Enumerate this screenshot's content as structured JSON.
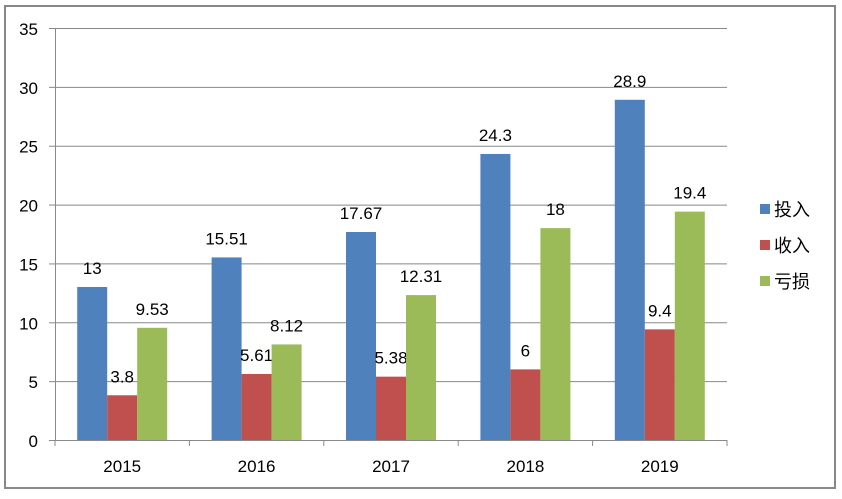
{
  "chart_data": {
    "type": "bar",
    "categories": [
      "2015",
      "2016",
      "2017",
      "2018",
      "2019"
    ],
    "series": [
      {
        "name": "投入",
        "color": "#4F81BD",
        "values": [
          13,
          15.51,
          17.67,
          24.3,
          28.9
        ]
      },
      {
        "name": "收入",
        "color": "#C0504D",
        "values": [
          3.8,
          5.61,
          5.38,
          6,
          9.4
        ]
      },
      {
        "name": "亏损",
        "color": "#9BBB59",
        "values": [
          9.53,
          8.12,
          12.31,
          18,
          19.4
        ]
      }
    ],
    "ylim": [
      0,
      35
    ],
    "yticks": [
      0,
      5,
      10,
      15,
      20,
      25,
      30,
      35
    ],
    "grid": true,
    "legend": "right",
    "title": "",
    "xlabel": "",
    "ylabel": ""
  }
}
